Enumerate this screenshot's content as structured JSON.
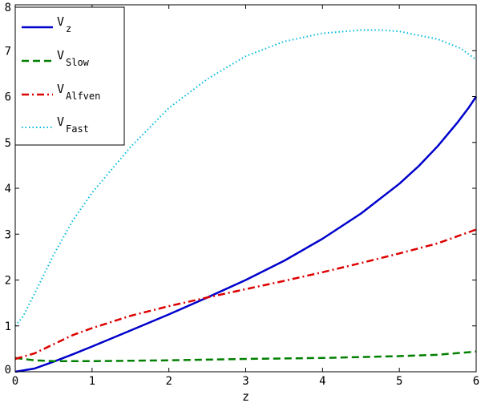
{
  "chart_data": {
    "type": "line",
    "title": "",
    "xlabel": "z",
    "ylabel": "",
    "xlim": [
      0,
      6
    ],
    "ylim": [
      0,
      8
    ],
    "xticks": [
      "0",
      "1",
      "2",
      "3",
      "4",
      "5",
      "6"
    ],
    "yticks": [
      "0",
      "1",
      "2",
      "3",
      "4",
      "5",
      "6",
      "7",
      "8"
    ],
    "grid": false,
    "legend_position": "top-left",
    "series": [
      {
        "name": "V",
        "subscript": "z",
        "color": "#0000cc",
        "style": "solid",
        "x": [
          0,
          0.25,
          0.5,
          0.75,
          1,
          1.5,
          2,
          2.5,
          3,
          3.5,
          4,
          4.5,
          5,
          5.25,
          5.5,
          5.75,
          5.9,
          6
        ],
        "y": [
          0,
          0.07,
          0.22,
          0.38,
          0.55,
          0.9,
          1.25,
          1.62,
          2.0,
          2.42,
          2.9,
          3.45,
          4.1,
          4.48,
          4.92,
          5.42,
          5.75,
          6.0
        ]
      },
      {
        "name": "V",
        "subscript": "Slow",
        "color": "#007f00",
        "style": "dashed",
        "x": [
          0,
          0.25,
          0.5,
          1,
          2,
          3,
          4,
          5,
          5.5,
          6
        ],
        "y": [
          0.3,
          0.25,
          0.23,
          0.23,
          0.25,
          0.28,
          0.3,
          0.34,
          0.37,
          0.44
        ]
      },
      {
        "name": "V",
        "subscript": "Alfven",
        "color": "#dd0000",
        "style": "dashdot",
        "x": [
          0,
          0.25,
          0.5,
          0.75,
          1,
          1.5,
          2,
          2.5,
          3,
          3.5,
          4,
          4.5,
          5,
          5.5,
          5.75,
          6
        ],
        "y": [
          0.28,
          0.4,
          0.6,
          0.8,
          0.95,
          1.22,
          1.43,
          1.62,
          1.8,
          1.98,
          2.17,
          2.37,
          2.58,
          2.8,
          2.95,
          3.1
        ]
      },
      {
        "name": "V",
        "subscript": "Fast",
        "color": "#00bbdd",
        "style": "dotted",
        "x": [
          0,
          0.1,
          0.25,
          0.5,
          0.75,
          1,
          1.5,
          2,
          2.5,
          3,
          3.5,
          4,
          4.5,
          4.75,
          5,
          5.5,
          5.8,
          6
        ],
        "y": [
          1.0,
          1.2,
          1.7,
          2.55,
          3.3,
          3.9,
          4.9,
          5.75,
          6.38,
          6.88,
          7.2,
          7.38,
          7.45,
          7.45,
          7.42,
          7.25,
          7.05,
          6.8
        ]
      }
    ]
  }
}
